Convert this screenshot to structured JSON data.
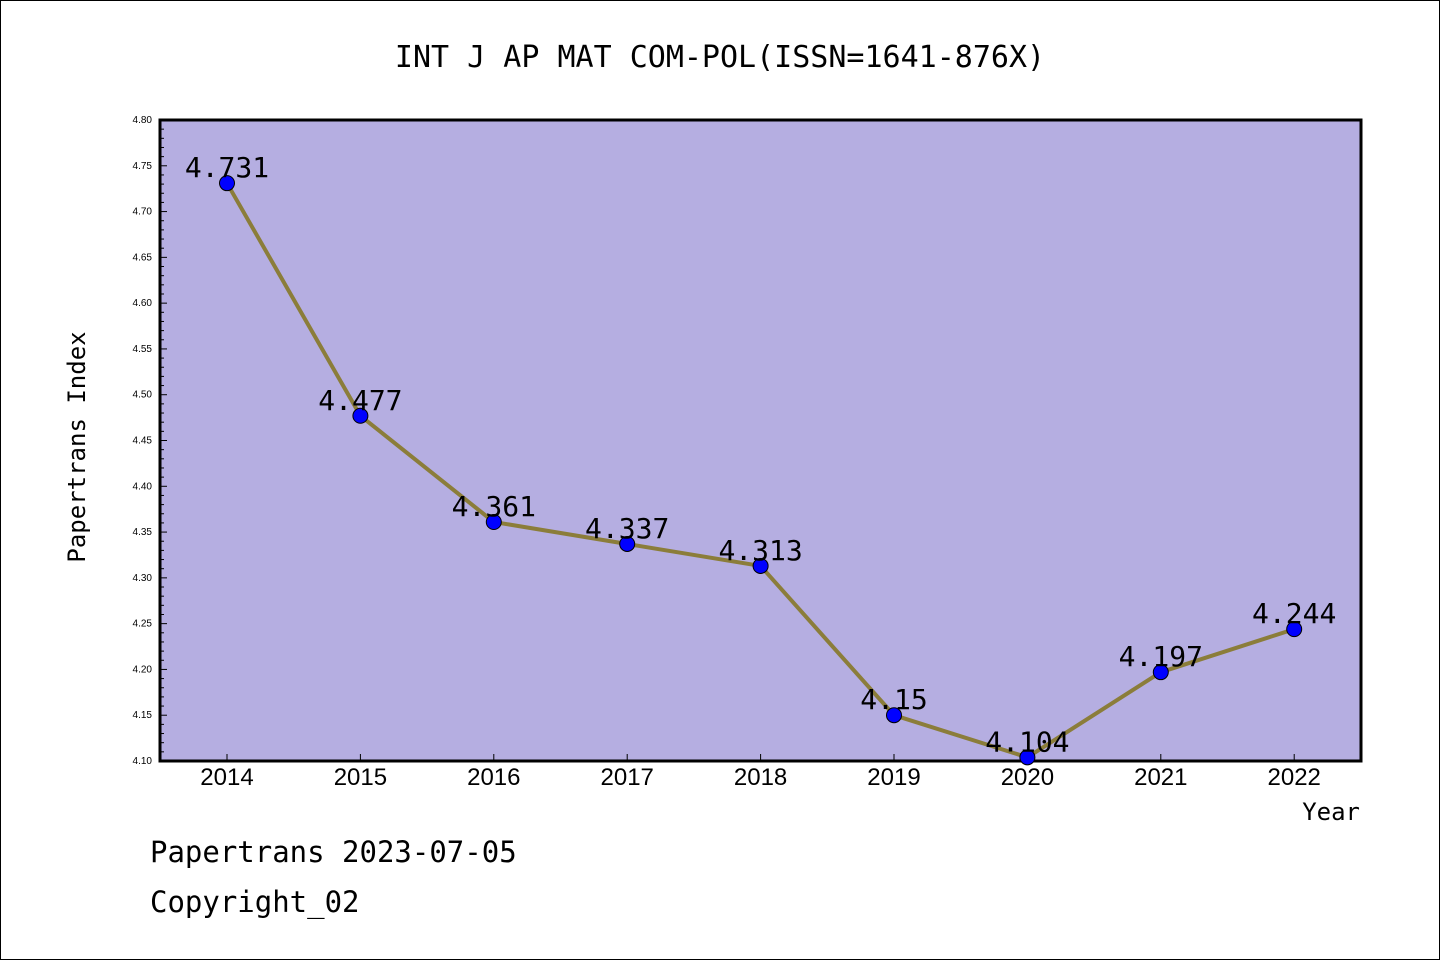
{
  "chart_data": {
    "type": "line",
    "title": "INT J AP MAT COM-POL(ISSN=1641-876X)",
    "xlabel": "Year",
    "ylabel": "Papertrans Index",
    "x": [
      "2014",
      "2015",
      "2016",
      "2017",
      "2018",
      "2019",
      "2020",
      "2021",
      "2022"
    ],
    "series": [
      {
        "values": [
          4.731,
          4.477,
          4.361,
          4.337,
          4.313,
          4.15,
          4.104,
          4.197,
          4.244
        ],
        "labels": [
          "4.731",
          "4.477",
          "4.361",
          "4.337",
          "4.313",
          "4.15",
          "4.104",
          "4.197",
          "4.244"
        ]
      }
    ],
    "ylim": [
      4.1,
      4.8
    ],
    "yticks": [
      "4.10",
      "4.15",
      "4.20",
      "4.25",
      "4.30",
      "4.35",
      "4.40",
      "4.45",
      "4.50",
      "4.55",
      "4.60",
      "4.65",
      "4.70",
      "4.75",
      "4.80"
    ],
    "grid": false,
    "legend": "none",
    "colors": {
      "plot_background": "#b5aee1",
      "line": "#8b7d3a",
      "marker": "#0000ff",
      "axis": "#000000"
    }
  },
  "footer": {
    "source": "Papertrans 2023-07-05",
    "copyright": "Copyright_02"
  }
}
